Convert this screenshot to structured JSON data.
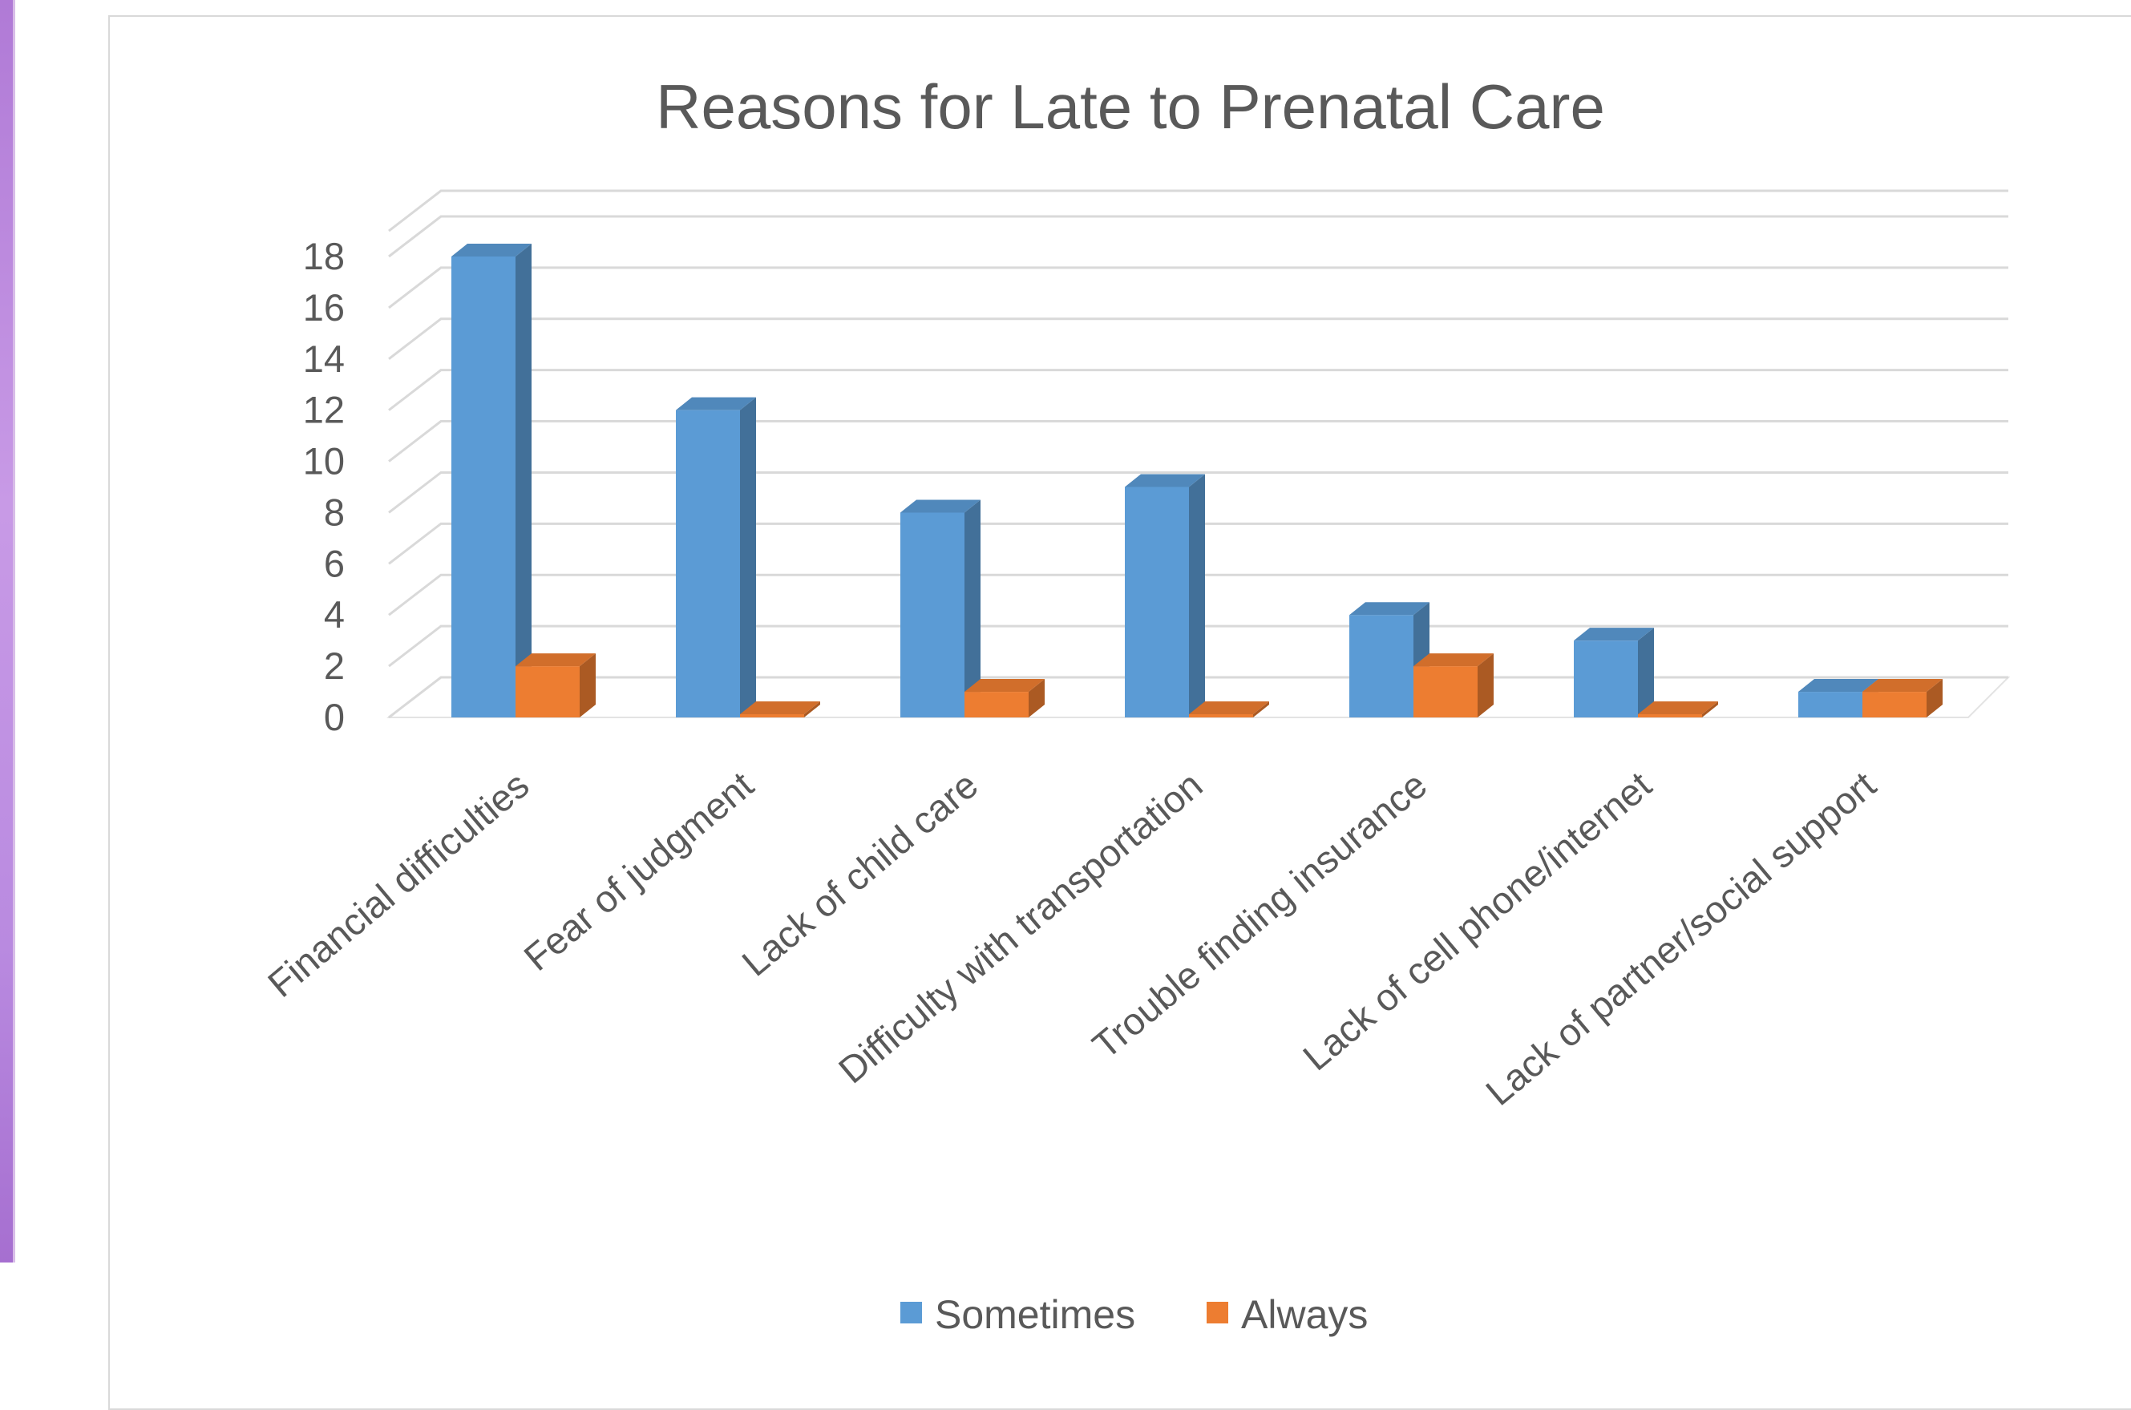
{
  "chart_data": {
    "type": "bar",
    "title": "Reasons for Late to Prenatal Care",
    "categories": [
      "Financial difficulties",
      "Fear of judgment",
      "Lack of child care",
      "Difficulty with transportation",
      "Trouble finding insurance",
      "Lack of cell phone/internet",
      "Lack of partner/social support"
    ],
    "series": [
      {
        "name": "Sometimes",
        "values": [
          18,
          12,
          8,
          9,
          4,
          3,
          1
        ],
        "color": "#5b9bd5"
      },
      {
        "name": "Always",
        "values": [
          2,
          0,
          1,
          0,
          2,
          0,
          1
        ],
        "color": "#ed7d31"
      }
    ],
    "yticks": [
      "0",
      "2",
      "4",
      "6",
      "8",
      "10",
      "12",
      "14",
      "16",
      "18"
    ],
    "ylim": [
      0,
      18
    ],
    "xlabel": "",
    "ylabel": "",
    "grid": true,
    "legend_position": "bottom",
    "style": "3d-clustered-column"
  }
}
